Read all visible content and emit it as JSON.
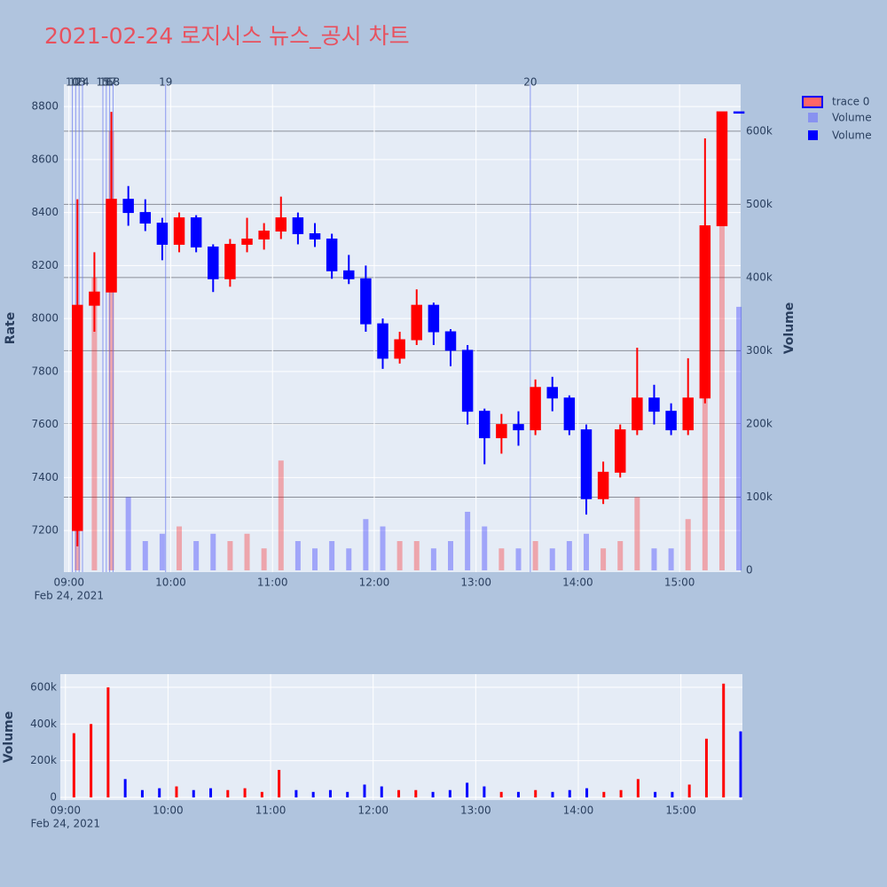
{
  "chart_data": {
    "type": "candlestick",
    "title": "2021-02-24 로지시스 뉴스_공시 차트",
    "ylabel": "Rate",
    "y2label": "Volume",
    "name": "trace 0",
    "increasing_color": "#ff0000",
    "decreasing_color": "#0000ff",
    "x": [
      "09:00",
      "09:10",
      "09:20",
      "09:30",
      "09:40",
      "09:50",
      "10:00",
      "10:10",
      "10:20",
      "10:30",
      "10:40",
      "10:50",
      "11:00",
      "11:10",
      "11:20",
      "11:30",
      "11:40",
      "11:50",
      "12:00",
      "12:10",
      "12:20",
      "12:30",
      "12:40",
      "12:50",
      "13:00",
      "13:10",
      "13:20",
      "13:30",
      "13:40",
      "13:50",
      "14:00",
      "14:10",
      "14:20",
      "14:30",
      "14:40",
      "14:50",
      "15:00",
      "15:10",
      "15:20",
      "15:30"
    ],
    "open": [
      7200,
      8050,
      8100,
      8450,
      8400,
      8360,
      8280,
      8380,
      8270,
      8150,
      8280,
      8300,
      8330,
      8380,
      8320,
      8300,
      8180,
      8150,
      7980,
      7850,
      7920,
      8050,
      7950,
      7880,
      7650,
      7550,
      7600,
      7580,
      7740,
      7700,
      7580,
      7320,
      7420,
      7580,
      7700,
      7650,
      7580,
      7700,
      8350,
      8780
    ],
    "high": [
      8450,
      8250,
      8780,
      8500,
      8450,
      8380,
      8400,
      8390,
      8280,
      8300,
      8380,
      8360,
      8460,
      8400,
      8360,
      8320,
      8240,
      8200,
      8000,
      7950,
      8110,
      8060,
      7960,
      7900,
      7660,
      7640,
      7650,
      7770,
      7780,
      7710,
      7600,
      7460,
      7600,
      7890,
      7750,
      7680,
      7850,
      8680,
      8780,
      8780
    ],
    "low": [
      7140,
      7950,
      8100,
      8350,
      8330,
      8220,
      8250,
      8250,
      8100,
      8120,
      8250,
      8260,
      8300,
      8280,
      8270,
      8150,
      8130,
      7950,
      7810,
      7830,
      7900,
      7900,
      7820,
      7600,
      7450,
      7490,
      7520,
      7560,
      7650,
      7560,
      7260,
      7300,
      7400,
      7560,
      7600,
      7560,
      7560,
      7680,
      8350,
      8780
    ],
    "close": [
      8050,
      8100,
      8450,
      8400,
      8360,
      8280,
      8380,
      8270,
      8150,
      8280,
      8300,
      8330,
      8380,
      8320,
      8300,
      8180,
      8150,
      7980,
      7850,
      7920,
      8050,
      7950,
      7880,
      7650,
      7550,
      7600,
      7580,
      7740,
      7700,
      7580,
      7320,
      7420,
      7580,
      7700,
      7650,
      7580,
      7700,
      8350,
      8780,
      8780
    ],
    "volume": {
      "name": "Volume",
      "values": [
        350000,
        400000,
        600000,
        100000,
        40000,
        50000,
        60000,
        40000,
        50000,
        40000,
        50000,
        30000,
        150000,
        40000,
        30000,
        40000,
        30000,
        70000,
        60000,
        40000,
        40000,
        30000,
        40000,
        80000,
        60000,
        30000,
        30000,
        40000,
        30000,
        40000,
        50000,
        30000,
        40000,
        100000,
        30000,
        30000,
        70000,
        320000,
        620000,
        360000
      ]
    },
    "xlim": [
      "08:57",
      "15:36"
    ],
    "xticks": [
      "09:00",
      "10:00",
      "11:00",
      "12:00",
      "13:00",
      "14:00",
      "15:00"
    ],
    "x_sublabel": "Feb 24, 2021",
    "ylim": [
      7043,
      8884
    ],
    "yticks": [
      7200,
      7400,
      7600,
      7800,
      8000,
      8200,
      8400,
      8600,
      8800
    ],
    "y2lim": [
      -2400,
      664000
    ],
    "y2ticks": [
      0,
      {
        "value": 100000,
        "label": "100k"
      },
      {
        "value": 200000,
        "label": "200k"
      },
      {
        "value": 300000,
        "label": "300k"
      },
      {
        "value": 400000,
        "label": "400k"
      },
      {
        "value": 500000,
        "label": "500k"
      },
      {
        "value": 600000,
        "label": "600k"
      }
    ],
    "news": [
      {
        "label": "10",
        "x": "09:02"
      },
      {
        "label": "12",
        "x": "09:04"
      },
      {
        "label": "13",
        "x": "09:06"
      },
      {
        "label": "14",
        "x": "09:08"
      },
      {
        "label": "15",
        "x": "09:20"
      },
      {
        "label": "16",
        "x": "09:22"
      },
      {
        "label": "17",
        "x": "09:24"
      },
      {
        "label": "18",
        "x": "09:26"
      },
      {
        "label": "19",
        "x": "09:57"
      },
      {
        "label": "20",
        "x": "13:32"
      }
    ],
    "volume_panel": {
      "name": "Volume",
      "ylabel": "Volume",
      "ylim": [
        -14500,
        672000
      ],
      "yticks": [
        0,
        {
          "value": 200000,
          "label": "200k"
        },
        {
          "value": 400000,
          "label": "400k"
        },
        {
          "value": 600000,
          "label": "600k"
        }
      ]
    }
  }
}
